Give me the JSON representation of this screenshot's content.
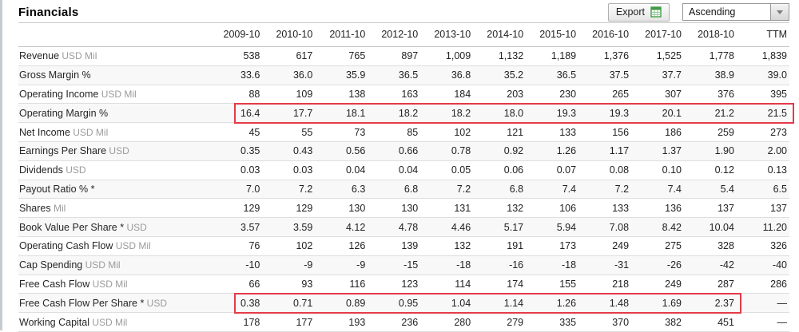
{
  "page": {
    "title": "Financials"
  },
  "toolbar": {
    "export_label": "Export",
    "sort_value": "Ascending"
  },
  "colors": {
    "highlight_red": "#e43b49",
    "icon_green": "#3f9a43"
  },
  "table": {
    "columns": [
      "2009-10",
      "2010-10",
      "2011-10",
      "2012-10",
      "2013-10",
      "2014-10",
      "2015-10",
      "2016-10",
      "2017-10",
      "2018-10",
      "TTM"
    ],
    "rows": [
      {
        "label": "Revenue",
        "unit": "USD Mil",
        "values": [
          "538",
          "617",
          "765",
          "897",
          "1,009",
          "1,132",
          "1,189",
          "1,376",
          "1,525",
          "1,778",
          "1,839"
        ]
      },
      {
        "label": "Gross Margin %",
        "unit": "",
        "values": [
          "33.6",
          "36.0",
          "35.9",
          "36.5",
          "36.8",
          "35.2",
          "36.5",
          "37.5",
          "37.7",
          "38.9",
          "39.0"
        ]
      },
      {
        "label": "Operating Income",
        "unit": "USD Mil",
        "values": [
          "88",
          "109",
          "138",
          "163",
          "184",
          "203",
          "230",
          "265",
          "307",
          "376",
          "395"
        ]
      },
      {
        "label": "Operating Margin %",
        "unit": "",
        "values": [
          "16.4",
          "17.7",
          "18.1",
          "18.2",
          "18.2",
          "18.0",
          "19.3",
          "19.3",
          "20.1",
          "21.2",
          "21.5"
        ],
        "highlight": {
          "from": 0,
          "to": 10
        }
      },
      {
        "label": "Net Income",
        "unit": "USD Mil",
        "values": [
          "45",
          "55",
          "73",
          "85",
          "102",
          "121",
          "133",
          "156",
          "186",
          "259",
          "273"
        ]
      },
      {
        "label": "Earnings Per Share",
        "unit": "USD",
        "values": [
          "0.35",
          "0.43",
          "0.56",
          "0.66",
          "0.78",
          "0.92",
          "1.26",
          "1.17",
          "1.37",
          "1.90",
          "2.00"
        ]
      },
      {
        "label": "Dividends",
        "unit": "USD",
        "values": [
          "0.03",
          "0.03",
          "0.04",
          "0.04",
          "0.05",
          "0.06",
          "0.07",
          "0.08",
          "0.10",
          "0.12",
          "0.13"
        ]
      },
      {
        "label": "Payout Ratio % *",
        "unit": "",
        "values": [
          "7.0",
          "7.2",
          "6.3",
          "6.8",
          "7.2",
          "6.8",
          "7.4",
          "7.2",
          "7.4",
          "5.4",
          "6.5"
        ]
      },
      {
        "label": "Shares",
        "unit": "Mil",
        "values": [
          "129",
          "129",
          "130",
          "130",
          "131",
          "132",
          "106",
          "133",
          "136",
          "137",
          "137"
        ]
      },
      {
        "label": "Book Value Per Share *",
        "unit": "USD",
        "values": [
          "3.57",
          "3.59",
          "4.12",
          "4.78",
          "4.46",
          "5.17",
          "5.94",
          "7.08",
          "8.42",
          "10.04",
          "11.20"
        ]
      },
      {
        "label": "Operating Cash Flow",
        "unit": "USD Mil",
        "values": [
          "76",
          "102",
          "126",
          "139",
          "132",
          "191",
          "173",
          "249",
          "275",
          "328",
          "326"
        ]
      },
      {
        "label": "Cap Spending",
        "unit": "USD Mil",
        "values": [
          "-10",
          "-9",
          "-9",
          "-15",
          "-18",
          "-16",
          "-18",
          "-31",
          "-26",
          "-42",
          "-40"
        ]
      },
      {
        "label": "Free Cash Flow",
        "unit": "USD Mil",
        "values": [
          "66",
          "93",
          "116",
          "123",
          "114",
          "174",
          "155",
          "218",
          "249",
          "287",
          "286"
        ]
      },
      {
        "label": "Free Cash Flow Per Share *",
        "unit": "USD",
        "values": [
          "0.38",
          "0.71",
          "0.89",
          "0.95",
          "1.04",
          "1.14",
          "1.26",
          "1.48",
          "1.69",
          "2.37",
          "—"
        ],
        "highlight": {
          "from": 0,
          "to": 9
        }
      },
      {
        "label": "Working Capital",
        "unit": "USD Mil",
        "values": [
          "178",
          "177",
          "193",
          "236",
          "280",
          "279",
          "335",
          "370",
          "382",
          "451",
          "—"
        ]
      }
    ]
  }
}
